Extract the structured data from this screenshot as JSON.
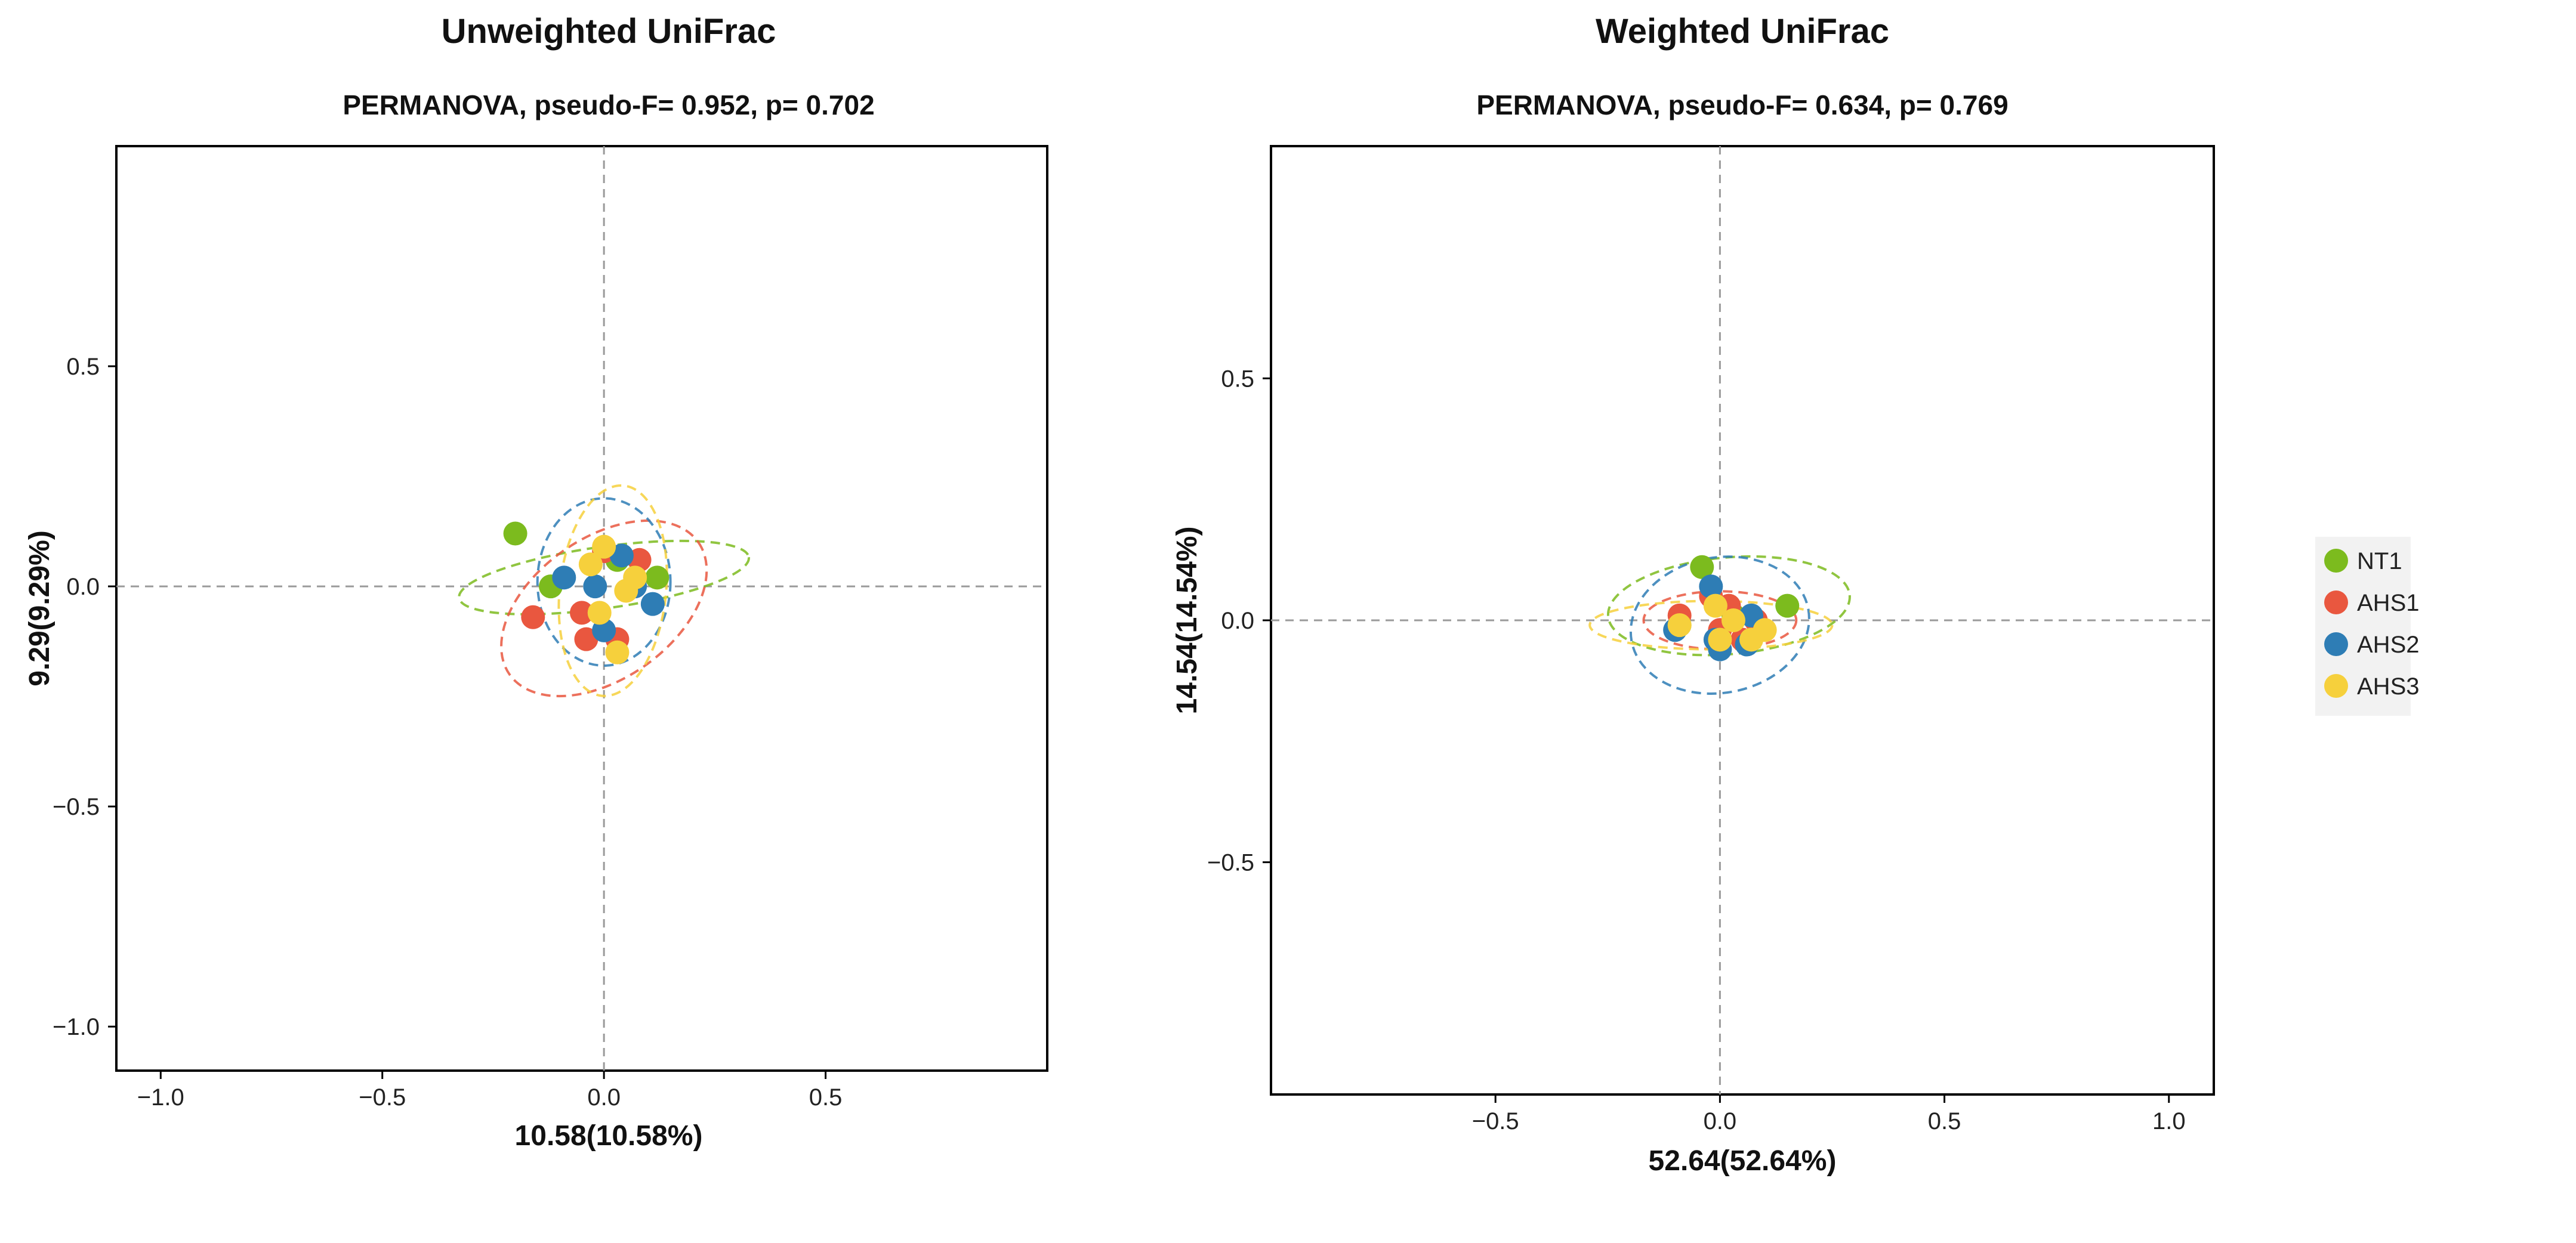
{
  "colors": {
    "NT1": "#7cbb1e",
    "AHS1": "#e9573f",
    "AHS2": "#2e7db5",
    "AHS3": "#f6d03c",
    "guide": "#9a9a9a",
    "frame": "#000000"
  },
  "legend": {
    "items": [
      "NT1",
      "AHS1",
      "AHS2",
      "AHS3"
    ]
  },
  "chart_data": [
    {
      "type": "scatter",
      "title": "Unweighted UniFrac",
      "subtitle": "PERMANOVA, pseudo-F= 0.952, p= 0.702",
      "xlabel": "10.58(10.58%)",
      "ylabel": "9.29(9.29%)",
      "xlim": [
        -1.1,
        1.0
      ],
      "ylim": [
        -1.1,
        1.0
      ],
      "xticks": [
        -1.0,
        -0.5,
        0.0,
        0.5
      ],
      "xtick_labels": [
        "−1.0",
        "−0.5",
        "0.0",
        "0.5"
      ],
      "yticks": [
        0.5,
        0.0,
        -0.5,
        -1.0
      ],
      "ytick_labels": [
        "0.5",
        "0.0",
        "−0.5",
        "−1.0"
      ],
      "reference_lines": {
        "x": 0,
        "y": 0
      },
      "series": [
        {
          "name": "NT1",
          "points": [
            [
              -0.2,
              0.12
            ],
            [
              -0.12,
              0.0
            ],
            [
              0.03,
              0.06
            ],
            [
              0.12,
              0.02
            ]
          ],
          "ellipse": {
            "cx": 0.0,
            "cy": 0.02,
            "rx": 0.33,
            "ry": 0.07,
            "angle": -8
          }
        },
        {
          "name": "AHS1",
          "points": [
            [
              -0.16,
              -0.07
            ],
            [
              -0.05,
              -0.06
            ],
            [
              -0.04,
              -0.12
            ],
            [
              0.0,
              0.08
            ],
            [
              0.03,
              -0.12
            ],
            [
              0.08,
              0.06
            ]
          ],
          "ellipse": {
            "cx": 0.0,
            "cy": -0.05,
            "rx": 0.26,
            "ry": 0.16,
            "angle": -35
          }
        },
        {
          "name": "AHS2",
          "points": [
            [
              -0.09,
              0.02
            ],
            [
              -0.02,
              0.0
            ],
            [
              0.0,
              -0.1
            ],
            [
              0.04,
              0.07
            ],
            [
              0.07,
              0.0
            ],
            [
              0.11,
              -0.04
            ]
          ],
          "ellipse": {
            "cx": 0.0,
            "cy": 0.01,
            "rx": 0.15,
            "ry": 0.19,
            "angle": 0
          }
        },
        {
          "name": "AHS3",
          "points": [
            [
              -0.03,
              0.05
            ],
            [
              -0.01,
              -0.06
            ],
            [
              0.0,
              0.09
            ],
            [
              0.03,
              -0.15
            ],
            [
              0.05,
              -0.01
            ],
            [
              0.07,
              0.02
            ]
          ],
          "ellipse": {
            "cx": 0.02,
            "cy": -0.01,
            "rx": 0.12,
            "ry": 0.24,
            "angle": 6
          }
        }
      ]
    },
    {
      "type": "scatter",
      "title": "Weighted UniFrac",
      "subtitle": "PERMANOVA, pseudo-F= 0.634, p= 0.769",
      "xlabel": "52.64(52.64%)",
      "ylabel": "14.54(14.54%)",
      "xlim": [
        -1.0,
        1.1
      ],
      "ylim": [
        -0.98,
        0.98
      ],
      "xticks": [
        -0.5,
        0.0,
        0.5,
        1.0
      ],
      "xtick_labels": [
        "−0.5",
        "0.0",
        "0.5",
        "1.0"
      ],
      "yticks": [
        0.5,
        0.0,
        -0.5
      ],
      "ytick_labels": [
        "0.5",
        "0.0",
        "−0.5"
      ],
      "reference_lines": {
        "x": 0,
        "y": 0
      },
      "series": [
        {
          "name": "NT1",
          "points": [
            [
              -0.04,
              0.11
            ],
            [
              0.03,
              0.01
            ],
            [
              0.15,
              0.03
            ],
            [
              -0.09,
              -0.01
            ]
          ],
          "ellipse": {
            "cx": 0.02,
            "cy": 0.03,
            "rx": 0.27,
            "ry": 0.1,
            "angle": -5
          }
        },
        {
          "name": "AHS1",
          "points": [
            [
              -0.09,
              0.01
            ],
            [
              -0.02,
              0.05
            ],
            [
              0.0,
              -0.02
            ],
            [
              0.05,
              -0.04
            ],
            [
              0.08,
              0.0
            ],
            [
              0.02,
              0.03
            ]
          ],
          "ellipse": {
            "cx": 0.0,
            "cy": 0.0,
            "rx": 0.17,
            "ry": 0.06,
            "angle": 0
          }
        },
        {
          "name": "AHS2",
          "points": [
            [
              -0.1,
              -0.02
            ],
            [
              -0.02,
              0.07
            ],
            [
              -0.01,
              -0.04
            ],
            [
              0.0,
              -0.06
            ],
            [
              0.07,
              0.01
            ],
            [
              0.06,
              -0.05
            ]
          ],
          "ellipse": {
            "cx": 0.0,
            "cy": -0.01,
            "rx": 0.2,
            "ry": 0.14,
            "angle": -10
          }
        },
        {
          "name": "AHS3",
          "points": [
            [
              -0.09,
              -0.01
            ],
            [
              -0.01,
              0.03
            ],
            [
              0.0,
              -0.04
            ],
            [
              0.07,
              -0.04
            ],
            [
              0.1,
              -0.02
            ],
            [
              0.03,
              0.0
            ]
          ],
          "ellipse": {
            "cx": -0.02,
            "cy": -0.01,
            "rx": 0.27,
            "ry": 0.05,
            "angle": 0
          }
        }
      ]
    }
  ]
}
